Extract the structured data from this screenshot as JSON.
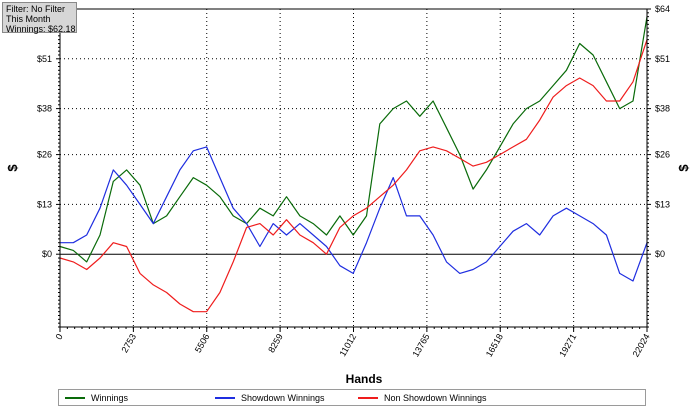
{
  "info": {
    "filter": "Filter: No Filter",
    "period": "This Month",
    "winnings": "Winnings: $62.18"
  },
  "legend": [
    {
      "name": "Winnings",
      "color": "#0a6b0a"
    },
    {
      "name": "Showdown Winnings",
      "color": "#1f2ee0"
    },
    {
      "name": "Non Showdown Winnings",
      "color": "#ef1d1d"
    }
  ],
  "chart_data": {
    "type": "line",
    "title": "",
    "xlabel": "Hands",
    "ylabel": "$",
    "xlim": [
      0,
      22024
    ],
    "ylim": [
      -19,
      64
    ],
    "x_ticks": [
      0,
      2753,
      5506,
      8259,
      11012,
      13765,
      16518,
      19271,
      22024
    ],
    "y_ticks": [
      0,
      13,
      26,
      38,
      51,
      64
    ],
    "y_tick_labels": [
      "$0",
      "$13",
      "$26",
      "$38",
      "$51",
      "$64"
    ],
    "grid": true,
    "legend_position": "bottom",
    "series": [
      {
        "name": "Winnings",
        "color": "#0a6b0a",
        "x": [
          0,
          500,
          1000,
          1500,
          2000,
          2500,
          3000,
          3500,
          4000,
          4500,
          5000,
          5500,
          6000,
          6500,
          7000,
          7500,
          8000,
          8500,
          9000,
          9500,
          10000,
          10500,
          11000,
          11500,
          12000,
          12500,
          13000,
          13500,
          14000,
          14500,
          15000,
          15500,
          16000,
          16500,
          17000,
          17500,
          18000,
          18500,
          19000,
          19500,
          20000,
          20500,
          21000,
          21500,
          22024
        ],
        "y": [
          2,
          1,
          -2,
          5,
          19,
          22,
          18,
          8,
          10,
          15,
          20,
          18,
          15,
          10,
          8,
          12,
          10,
          15,
          10,
          8,
          5,
          10,
          5,
          10,
          34,
          38,
          40,
          36,
          40,
          33,
          26,
          17,
          22,
          28,
          34,
          38,
          40,
          44,
          48,
          55,
          52,
          45,
          38,
          40,
          62
        ]
      },
      {
        "name": "Showdown Winnings",
        "color": "#1f2ee0",
        "x": [
          0,
          500,
          1000,
          1500,
          2000,
          2500,
          3000,
          3500,
          4000,
          4500,
          5000,
          5500,
          6000,
          6500,
          7000,
          7500,
          8000,
          8500,
          9000,
          9500,
          10000,
          10500,
          11000,
          11500,
          12000,
          12500,
          13000,
          13500,
          14000,
          14500,
          15000,
          15500,
          16000,
          16500,
          17000,
          17500,
          18000,
          18500,
          19000,
          19500,
          20000,
          20500,
          21000,
          21500,
          22024
        ],
        "y": [
          3,
          3,
          5,
          12,
          22,
          18,
          13,
          8,
          15,
          22,
          27,
          28,
          20,
          12,
          8,
          2,
          8,
          5,
          8,
          5,
          2,
          -3,
          -5,
          3,
          12,
          20,
          10,
          10,
          5,
          -2,
          -5,
          -4,
          -2,
          2,
          6,
          8,
          5,
          10,
          12,
          10,
          8,
          5,
          -5,
          -7,
          3
        ]
      },
      {
        "name": "Non Showdown Winnings",
        "color": "#ef1d1d",
        "x": [
          0,
          500,
          1000,
          1500,
          2000,
          2500,
          3000,
          3500,
          4000,
          4500,
          5000,
          5500,
          6000,
          6500,
          7000,
          7500,
          8000,
          8500,
          9000,
          9500,
          10000,
          10500,
          11000,
          11500,
          12000,
          12500,
          13000,
          13500,
          14000,
          14500,
          15000,
          15500,
          16000,
          16500,
          17000,
          17500,
          18000,
          18500,
          19000,
          19500,
          20000,
          20500,
          21000,
          21500,
          22024
        ],
        "y": [
          -1,
          -2,
          -4,
          -1,
          3,
          2,
          -5,
          -8,
          -10,
          -13,
          -15,
          -15,
          -10,
          -2,
          7,
          8,
          5,
          9,
          5,
          3,
          0,
          7,
          10,
          12,
          15,
          18,
          22,
          27,
          28,
          27,
          25,
          23,
          24,
          26,
          28,
          30,
          35,
          41,
          44,
          46,
          44,
          40,
          40,
          45,
          56
        ]
      }
    ]
  }
}
